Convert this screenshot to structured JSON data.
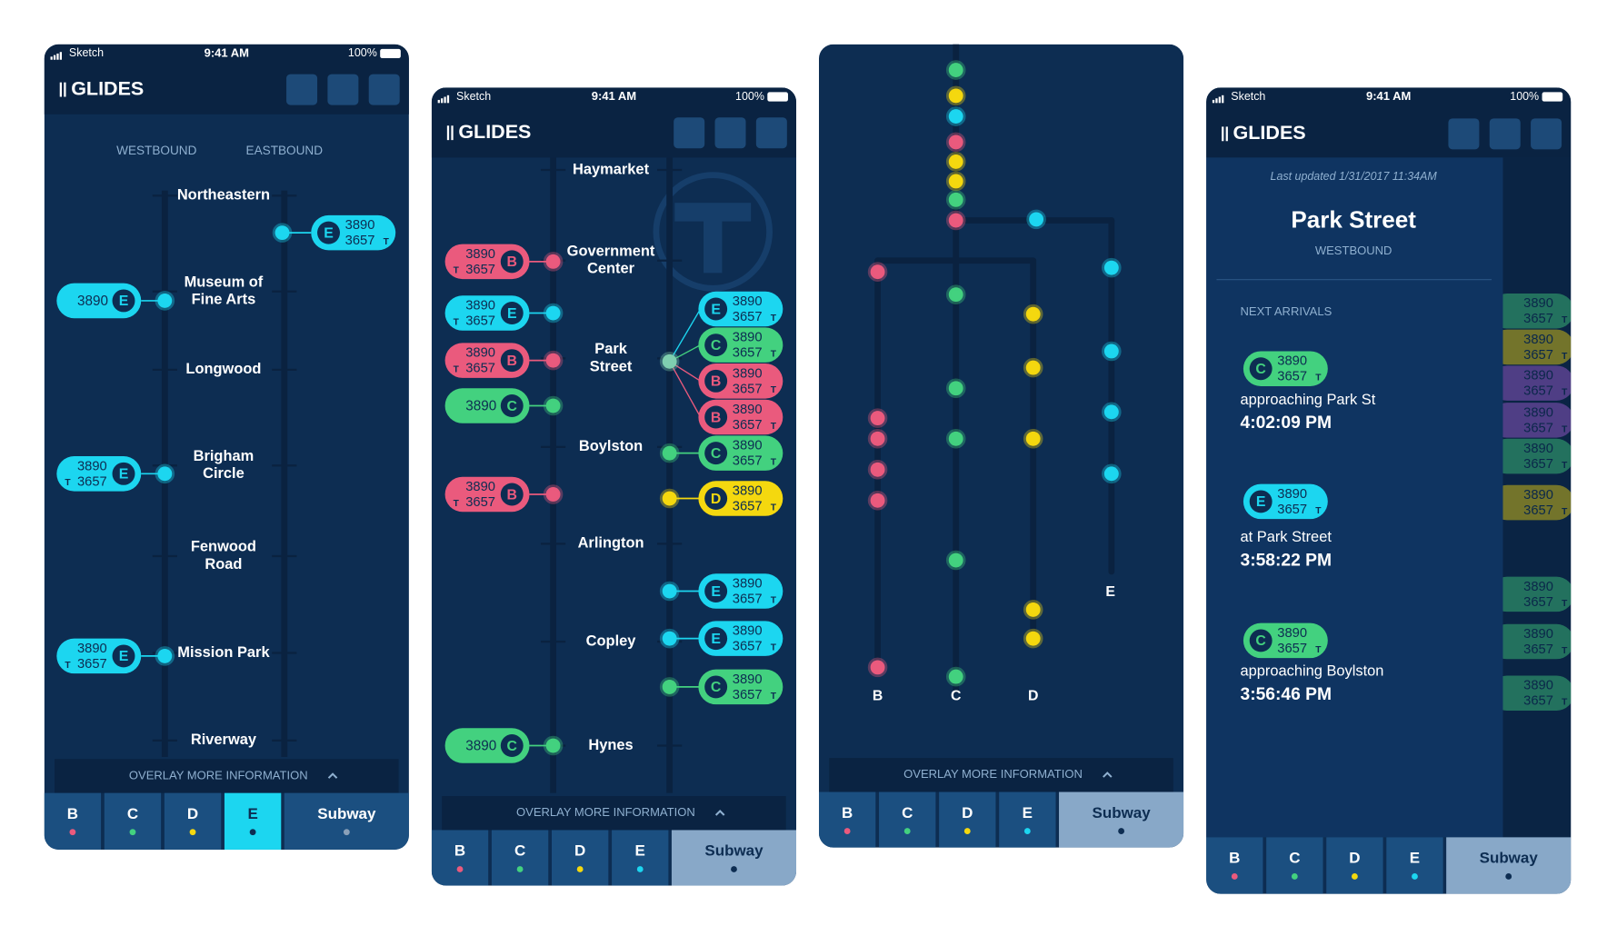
{
  "status_bar": {
    "carrier": "Sketch",
    "time": "9:41 AM",
    "battery": "100%"
  },
  "brand": "GLIDES",
  "route_colors": {
    "B": "#ea5a7d",
    "C": "#43d17f",
    "D": "#f4d80f",
    "E": "#1cd6f0"
  },
  "overlay": "OVERLAY MORE INFORMATION",
  "tabs": [
    "B",
    "C",
    "D",
    "E",
    "Subway"
  ],
  "screens": [
    {
      "directions": [
        "WESTBOUND",
        "EASTBOUND"
      ],
      "stations": [
        [
          "Northeastern"
        ],
        [
          "Museum of",
          "Fine Arts"
        ],
        [
          "Longwood"
        ],
        [
          "Brigham",
          "Circle"
        ],
        [
          "Fenwood",
          "Road"
        ],
        [
          "Mission Park"
        ],
        [
          "Riverway"
        ]
      ],
      "trains": [
        {
          "route": "E",
          "numbers": [
            "3890",
            "3657"
          ],
          "suffix": "T"
        },
        {
          "route": "E",
          "numbers": [
            "3890"
          ]
        },
        {
          "route": "E",
          "numbers": [
            "3890",
            "3657"
          ],
          "suffix": "T"
        },
        {
          "route": "E",
          "numbers": [
            "3890",
            "3657"
          ],
          "suffix": "T"
        }
      ],
      "active_tab": 3
    },
    {
      "stations": [
        [
          "Haymarket"
        ],
        [
          "Government",
          "Center"
        ],
        [
          "Park",
          "Street"
        ],
        [
          "Boylston"
        ],
        [
          "Arlington"
        ],
        [
          "Copley"
        ],
        [
          "Hynes"
        ]
      ],
      "trains_west": [
        {
          "route": "B",
          "numbers": [
            "3890",
            "3657"
          ],
          "suffix": "T"
        },
        {
          "route": "E",
          "numbers": [
            "3890",
            "3657"
          ],
          "suffix": "T"
        },
        {
          "route": "B",
          "numbers": [
            "3890",
            "3657"
          ],
          "suffix": "T"
        },
        {
          "route": "C",
          "numbers": [
            "3890"
          ]
        },
        {
          "route": "B",
          "numbers": [
            "3890",
            "3657"
          ],
          "suffix": "T"
        },
        {
          "route": "C",
          "numbers": [
            "3890"
          ]
        }
      ],
      "trains_east": [
        {
          "route": "E",
          "numbers": [
            "3890",
            "3657"
          ],
          "suffix": "T"
        },
        {
          "route": "C",
          "numbers": [
            "3890",
            "3657"
          ],
          "suffix": "T"
        },
        {
          "route": "B",
          "numbers": [
            "3890",
            "3657"
          ],
          "suffix": "T"
        },
        {
          "route": "B",
          "numbers": [
            "3890",
            "3657"
          ],
          "suffix": "T"
        },
        {
          "route": "C",
          "numbers": [
            "3890",
            "3657"
          ],
          "suffix": "T"
        },
        {
          "route": "D",
          "numbers": [
            "3890",
            "3657"
          ],
          "suffix": "T"
        },
        {
          "route": "E",
          "numbers": [
            "3890",
            "3657"
          ],
          "suffix": "T"
        },
        {
          "route": "E",
          "numbers": [
            "3890",
            "3657"
          ],
          "suffix": "T"
        },
        {
          "route": "C",
          "numbers": [
            "3890",
            "3657"
          ],
          "suffix": "T"
        }
      ],
      "active_tab": 4
    },
    {
      "branch_labels": [
        "B",
        "C",
        "D",
        "E"
      ],
      "active_tab": 4
    },
    {
      "updated": "Last updated 1/31/2017 11:34AM",
      "station": "Park Street",
      "direction": "WESTBOUND",
      "section": "NEXT ARRIVALS",
      "arrivals": [
        {
          "route": "C",
          "numbers": [
            "3890",
            "3657"
          ],
          "suffix": "T",
          "status": "approaching Park St",
          "time": "4:02:09 PM"
        },
        {
          "route": "E",
          "numbers": [
            "3890",
            "3657"
          ],
          "suffix": "T",
          "status": "at Park Street",
          "time": "3:58:22 PM"
        },
        {
          "route": "C",
          "numbers": [
            "3890",
            "3657"
          ],
          "suffix": "T",
          "status": "approaching Boylston",
          "time": "3:56:46 PM"
        }
      ],
      "background_trains": [
        {
          "color": "#43d17f",
          "numbers": [
            "3890",
            "3657"
          ],
          "suffix": "T"
        },
        {
          "color": "#f4d80f",
          "numbers": [
            "3890",
            "3657"
          ],
          "suffix": "T"
        },
        {
          "color": "#a55fd6",
          "numbers": [
            "3890",
            "3657"
          ],
          "suffix": "T"
        },
        {
          "color": "#a55fd6",
          "numbers": [
            "3890",
            "3657"
          ],
          "suffix": "T"
        },
        {
          "color": "#43d17f",
          "numbers": [
            "3890",
            "3657"
          ],
          "suffix": "T"
        },
        {
          "color": "#f4d80f",
          "numbers": [
            "3890",
            "3657"
          ],
          "suffix": "T"
        },
        {
          "color": "#43d17f",
          "numbers": [
            "3890",
            "3657"
          ],
          "suffix": "T"
        },
        {
          "color": "#43d17f",
          "numbers": [
            "3890",
            "3657"
          ],
          "suffix": "T"
        },
        {
          "color": "#43d17f",
          "numbers": [
            "3890",
            "3657"
          ],
          "suffix": "T"
        }
      ],
      "active_tab": 4
    }
  ]
}
